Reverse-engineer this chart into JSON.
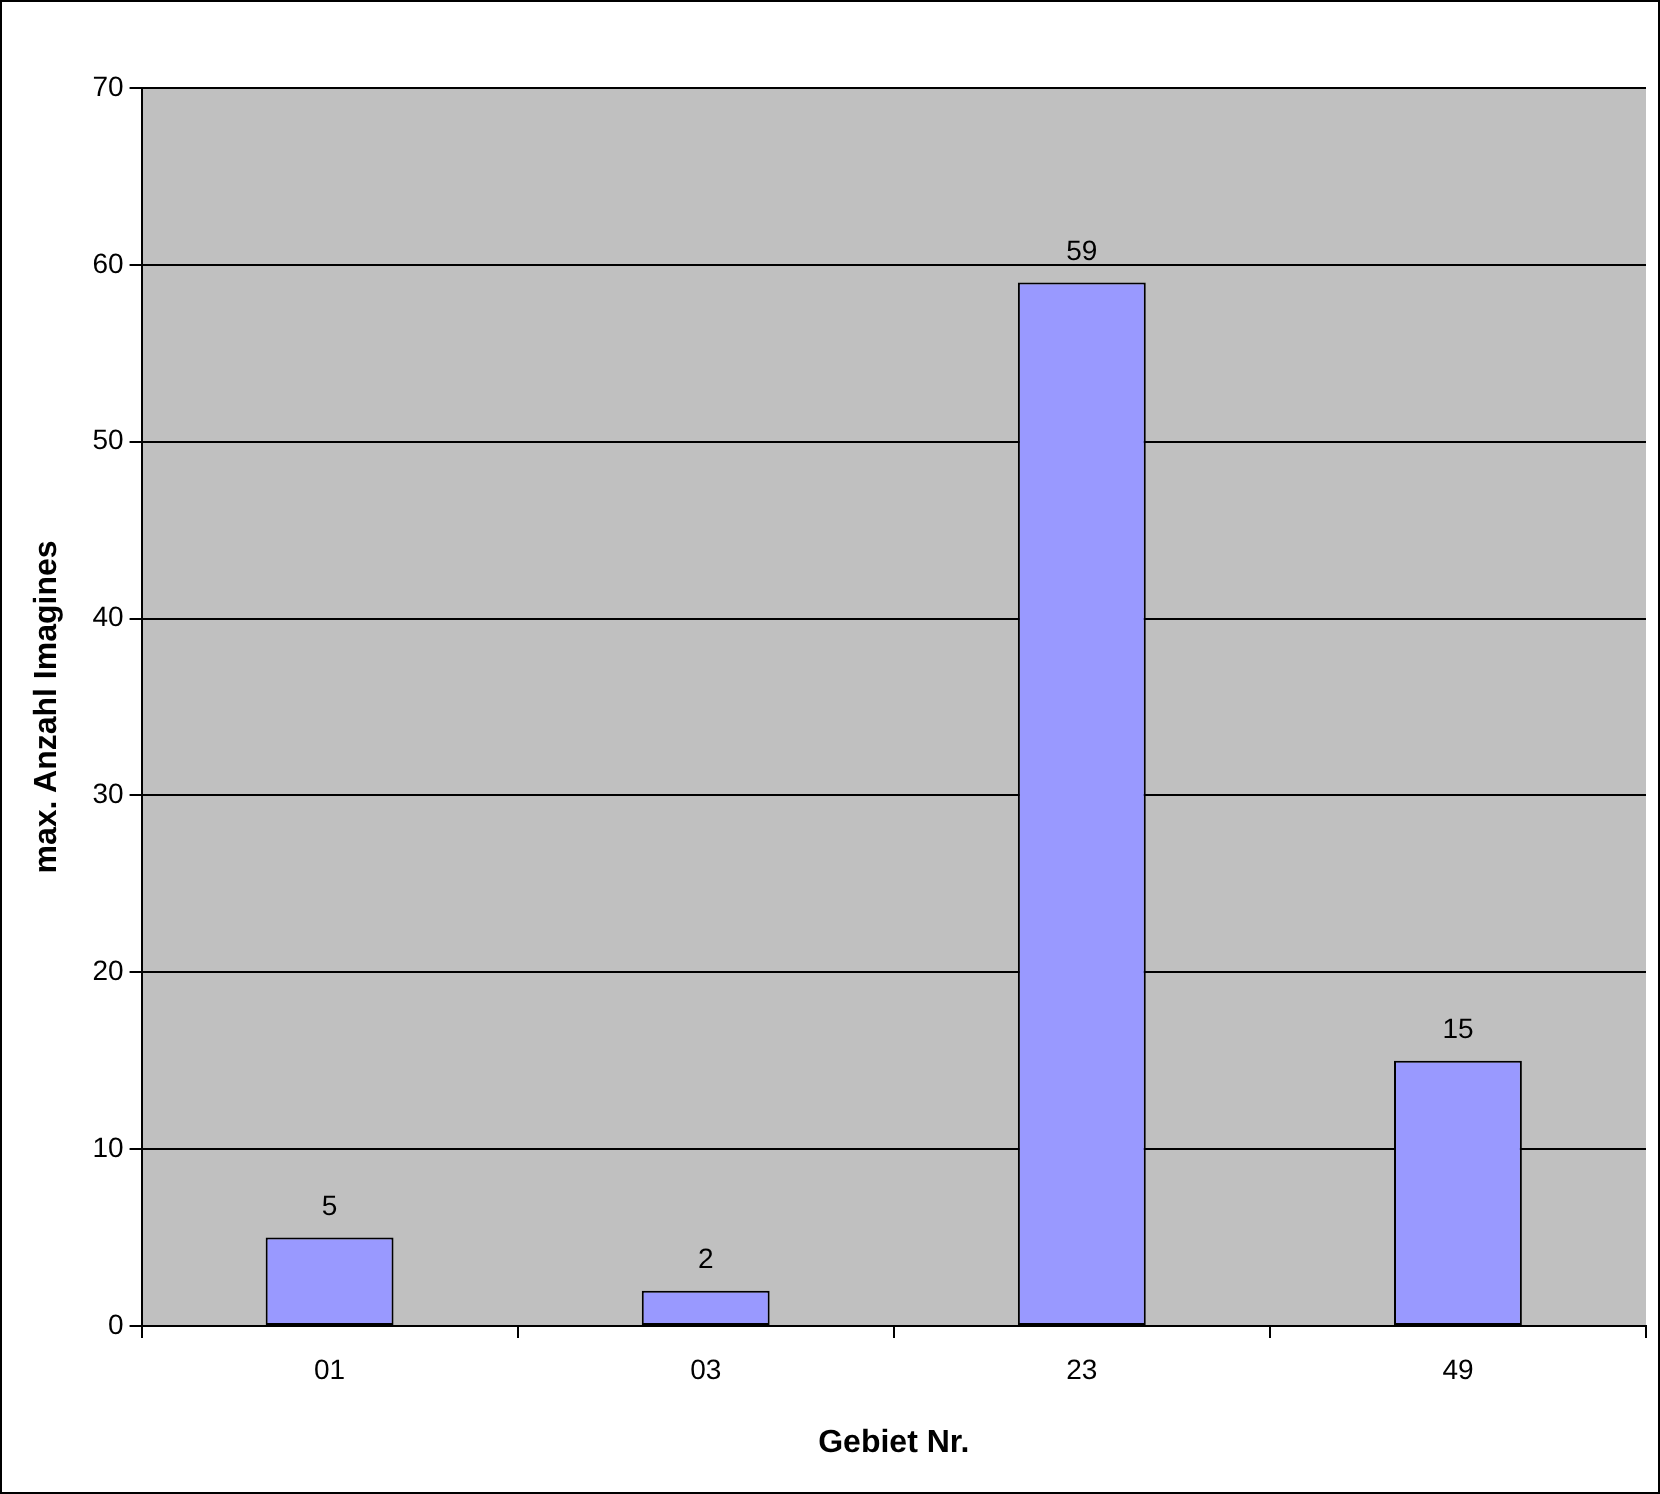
{
  "chart_data": {
    "type": "bar",
    "xlabel": "Gebiet Nr.",
    "ylabel": "max. Anzahl Imagines",
    "categories": [
      "01",
      "03",
      "23",
      "49"
    ],
    "values": [
      5,
      2,
      59,
      15
    ],
    "color": "#9999ff",
    "ylim": [
      0,
      70
    ],
    "yticks": [
      0,
      10,
      20,
      30,
      40,
      50,
      60,
      70
    ],
    "grid": "y",
    "data_labels": true
  }
}
